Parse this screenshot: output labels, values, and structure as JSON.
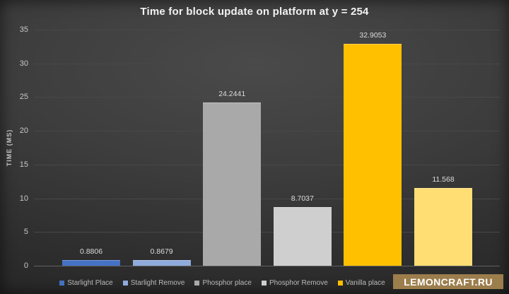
{
  "chart_data": {
    "type": "bar",
    "title": "Time for block update on platform at y = 254",
    "ylabel": "TIME (MS)",
    "ylim": [
      0,
      35
    ],
    "ytick_step": 5,
    "grid": true,
    "legend_position": "bottom",
    "series": [
      {
        "name": "Starlight Place",
        "value": 0.8806,
        "data_label": "0.8806",
        "color": "#4472C4"
      },
      {
        "name": "Starlight Remove",
        "value": 0.8679,
        "data_label": "0.8679",
        "color": "#8FAADC"
      },
      {
        "name": "Phosphor place",
        "value": 24.2441,
        "data_label": "24.2441",
        "color": "#A9A9A9"
      },
      {
        "name": "Phosphor Remove",
        "value": 8.7037,
        "data_label": "8.7037",
        "color": "#CFCFCF"
      },
      {
        "name": "Vanilla place",
        "value": 32.9053,
        "data_label": "32.9053",
        "color": "#FFC000"
      },
      {
        "name": "",
        "value": 11.568,
        "data_label": "11.568",
        "color": "#FFDE73",
        "legend_label_hidden_by_watermark": true
      }
    ]
  },
  "watermark": {
    "text": "LEMONCRAFT.RU",
    "background": "#9C7D4C",
    "text_color": "#FFFFFF"
  },
  "colors": {
    "background_center": "#4A4A4A",
    "background_edge": "#242424",
    "gridline": "#484848",
    "axis_line": "#616161",
    "title_text": "#F2F2F2",
    "tick_text": "#C8C8C8",
    "data_label_text": "#DCDCDC",
    "legend_text": "#B9B9B9"
  }
}
